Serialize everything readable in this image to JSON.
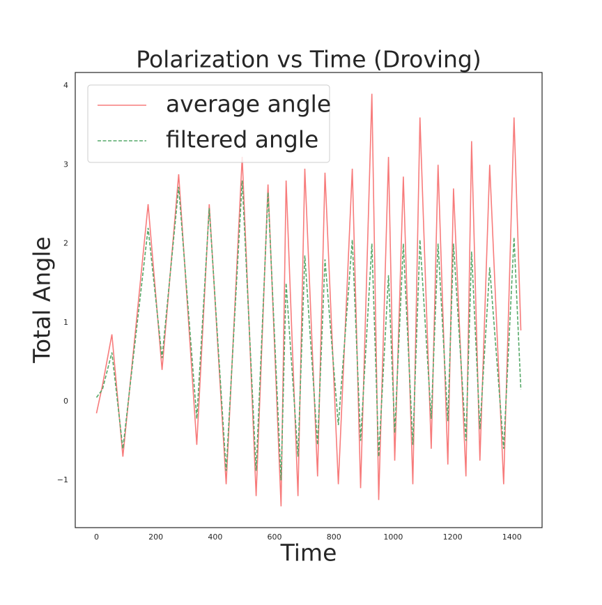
{
  "chart_data": {
    "type": "line",
    "title": "Polarization vs Time (Droving)",
    "x_label": "Time",
    "y_label": "Total Angle",
    "x": [
      0,
      20,
      52,
      89,
      174,
      221,
      277,
      338,
      380,
      437,
      491,
      538,
      578,
      622,
      639,
      679,
      702,
      745,
      770,
      815,
      862,
      890,
      928,
      951,
      984,
      1005,
      1034,
      1066,
      1090,
      1128,
      1151,
      1184,
      1203,
      1245,
      1264,
      1292,
      1325,
      1372,
      1407,
      1430
    ],
    "series": [
      {
        "name": "average angle",
        "color": "#f77b7b",
        "dash": "solid",
        "values": [
          -0.15,
          0.2,
          0.85,
          -0.7,
          2.5,
          0.4,
          2.88,
          -0.55,
          2.5,
          -1.05,
          3.1,
          -1.2,
          2.75,
          -1.33,
          2.8,
          -1.2,
          2.95,
          -0.95,
          2.9,
          -1.05,
          2.95,
          -1.1,
          3.9,
          -1.25,
          3.1,
          -0.75,
          2.85,
          -1.05,
          3.6,
          -0.6,
          3.0,
          -0.8,
          2.7,
          -0.95,
          3.3,
          -0.75,
          3.0,
          -1.05,
          3.6,
          0.9
        ]
      },
      {
        "name": "filtered angle",
        "color": "#55a868",
        "dash": "dashed",
        "values": [
          0.05,
          0.15,
          0.62,
          -0.6,
          2.2,
          0.55,
          2.72,
          -0.22,
          2.45,
          -0.88,
          2.8,
          -0.88,
          2.65,
          -1.0,
          1.5,
          -0.7,
          1.85,
          -0.55,
          1.8,
          -0.3,
          2.05,
          -0.5,
          2.0,
          -0.7,
          1.6,
          -0.4,
          2.0,
          -0.55,
          2.05,
          -0.22,
          2.0,
          -0.25,
          2.0,
          -0.5,
          1.9,
          -0.35,
          1.7,
          -0.6,
          2.08,
          0.15
        ]
      }
    ],
    "xlim": [
      -71.5,
      1501.5
    ],
    "xticks": [
      0,
      200,
      400,
      600,
      800,
      1000,
      1200,
      1400
    ],
    "ylim": [
      -1.6,
      4.17
    ],
    "yticks": [
      {
        "value": -1,
        "label": "−1"
      },
      0,
      1,
      2,
      3,
      4
    ],
    "legend": "upper left",
    "grid": false
  }
}
